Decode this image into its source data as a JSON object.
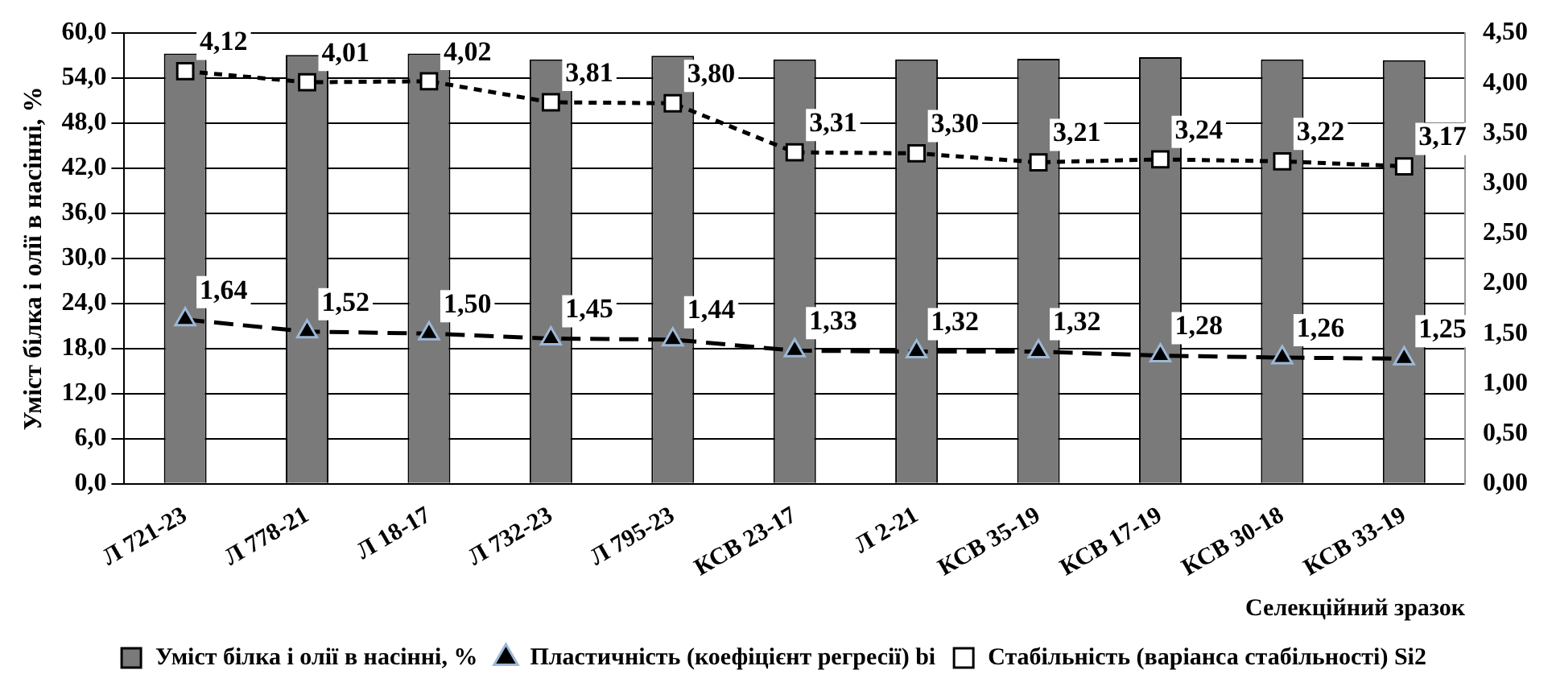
{
  "chart_data": {
    "type": "bar",
    "xlabel": "Селекційний зразок",
    "ylabel": "Уміст білка і олії в насінні, %",
    "categories": [
      "Л 721-23",
      "Л 778-21",
      "Л 18-17",
      "Л 732-23",
      "Л 795-23",
      "КСВ 23-17",
      "Л 2-21",
      "КСВ 35-19",
      "КСВ 17-19",
      "КСВ 30-18",
      "КСВ 33-19"
    ],
    "series": [
      {
        "name": "Уміст білка і олії в насінні, %",
        "color": "#7a7a7a",
        "values": [
          57.3,
          57.1,
          57.3,
          56.5,
          57.0,
          56.5,
          56.5,
          56.6,
          56.8,
          56.5,
          56.4
        ]
      },
      {
        "name": "Пластичність (коефіцієнт регресії) bi",
        "type": "line",
        "axis": "y2",
        "color": "#000000",
        "marker": "triangle",
        "line_style": "dashed",
        "values": [
          1.64,
          1.52,
          1.5,
          1.45,
          1.44,
          1.33,
          1.32,
          1.32,
          1.28,
          1.26,
          1.25
        ],
        "value_labels": [
          "1,64",
          "1,52",
          "1,50",
          "1,45",
          "1,44",
          "1,33",
          "1,32",
          "1,32",
          "1,28",
          "1,26",
          "1,25"
        ]
      },
      {
        "name": "Стабільність (варіанса стабільності) Si2",
        "type": "line",
        "axis": "y2",
        "color": "#000000",
        "marker": "square",
        "line_style": "dotted",
        "values": [
          4.12,
          4.01,
          4.02,
          3.81,
          3.8,
          3.31,
          3.3,
          3.21,
          3.24,
          3.22,
          3.17
        ],
        "value_labels": [
          "4,12",
          "4,01",
          "4,02",
          "3,81",
          "3,80",
          "3,31",
          "3,30",
          "3,21",
          "3,24",
          "3,22",
          "3,17"
        ]
      }
    ],
    "ylim": [
      0,
      60
    ],
    "yticks": [
      {
        "value": 0,
        "label": "0,0"
      },
      {
        "value": 6,
        "label": "6,0"
      },
      {
        "value": 12,
        "label": "12,0"
      },
      {
        "value": 18,
        "label": "18,0"
      },
      {
        "value": 24,
        "label": "24,0"
      },
      {
        "value": 30,
        "label": "30,0"
      },
      {
        "value": 36,
        "label": "36,0"
      },
      {
        "value": 42,
        "label": "42,0"
      },
      {
        "value": 48,
        "label": "48,0"
      },
      {
        "value": 54,
        "label": "54,0"
      },
      {
        "value": 60,
        "label": "60,0"
      }
    ],
    "y2lim": [
      0,
      4.5
    ],
    "y2ticks": [
      {
        "value": 0,
        "label": "0,00"
      },
      {
        "value": 0.5,
        "label": "0,50"
      },
      {
        "value": 1,
        "label": "1,00"
      },
      {
        "value": 1.5,
        "label": "1,50"
      },
      {
        "value": 2,
        "label": "2,00"
      },
      {
        "value": 2.5,
        "label": "2,50"
      },
      {
        "value": 3,
        "label": "3,00"
      },
      {
        "value": 3.5,
        "label": "3,50"
      },
      {
        "value": 4,
        "label": "4,00"
      },
      {
        "value": 4.5,
        "label": "4,50"
      }
    ],
    "grid": "y",
    "legend": "bottom"
  }
}
